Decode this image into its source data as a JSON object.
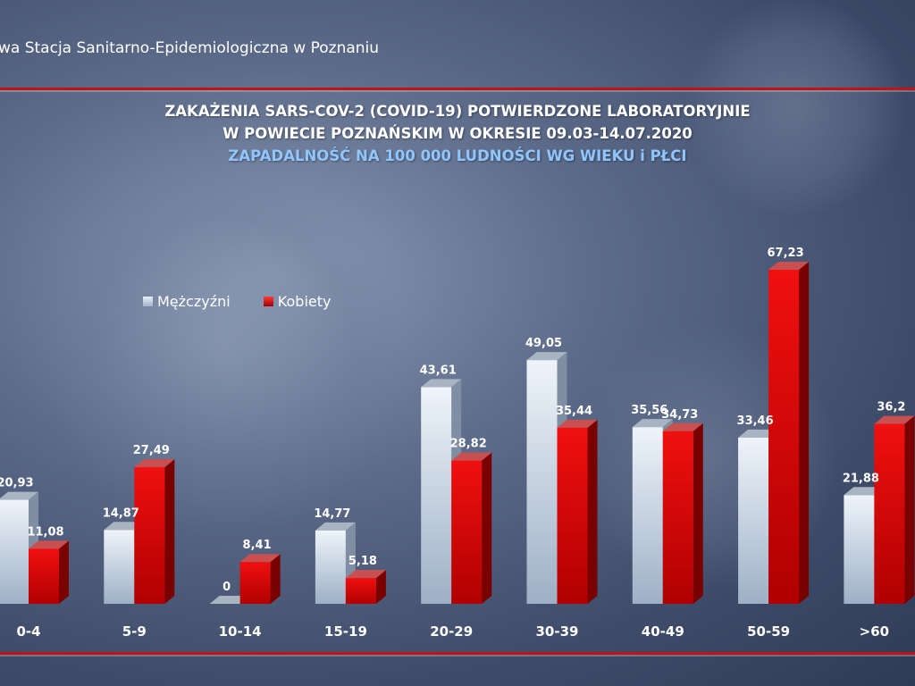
{
  "header": {
    "organization": "wa Stacja Sanitarno-Epidemiologiczna w Poznaniu"
  },
  "chart_data": {
    "type": "bar",
    "title": "ZAKAŻENIA SARS-COV-2 (COVID-19) POTWIERDZONE LABORATORYJNIE",
    "title_line2": "W POWIECIE POZNAŃSKIM W OKRESIE 09.03-14.07.2020",
    "subtitle": "ZAPADALNOŚĆ NA 100 000 LUDNOŚCI WG WIEKU i PŁCI",
    "categories": [
      "0-4",
      "5-9",
      "10-14",
      "15-19",
      "20-29",
      "30-39",
      "40-49",
      "50-59",
      ">60"
    ],
    "series": [
      {
        "name": "Mężczyźni",
        "color": "#c8d8ea",
        "values": [
          20.93,
          14.87,
          0,
          14.77,
          43.61,
          49.05,
          35.56,
          33.46,
          21.88
        ],
        "labels": [
          "20,93",
          "14,87",
          "0",
          "14,77",
          "43,61",
          "49,05",
          "35,56",
          "33,46",
          "21,88"
        ]
      },
      {
        "name": "Kobiety",
        "color": "#d40000",
        "values": [
          11.08,
          27.49,
          8.41,
          5.18,
          28.82,
          35.44,
          34.73,
          67.23,
          36.2
        ],
        "labels": [
          "11,08",
          "27,49",
          "8,41",
          "5,18",
          "28,82",
          "35,44",
          "34,73",
          "67,23",
          "36,2"
        ]
      }
    ],
    "legend_position": "top-left",
    "grid": false,
    "ylim": [
      0,
      67.23
    ]
  }
}
